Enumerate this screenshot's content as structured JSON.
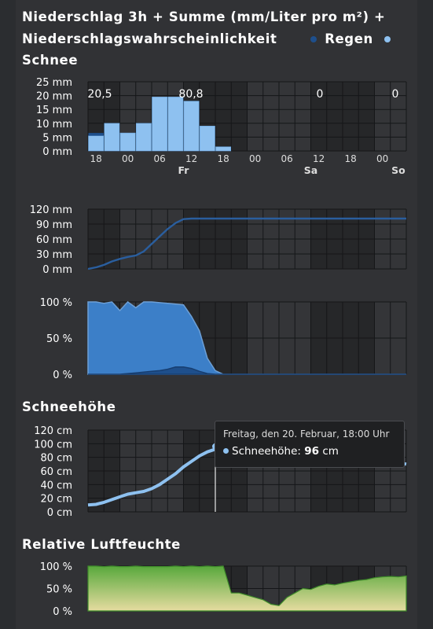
{
  "titles": {
    "precip_line1": "Niederschlag 3h + Summe (mm/Liter pro m²) +",
    "precip_line2": "Niederschlagswahrscheinlichkeit",
    "legend_rain": "Regen",
    "legend_snow": "Schnee",
    "snow_depth": "Schneehöhe",
    "humidity": "Relative Luftfeuchte"
  },
  "colors": {
    "rain": "#1e4f8c",
    "snow": "#8ec1f0",
    "snow_prob": "#3c7fc8",
    "humidity_green": "#58a83c",
    "humidity_sand": "#e6dca0"
  },
  "x_axis": {
    "hour_ticks": [
      "18",
      "00",
      "06",
      "12",
      "18",
      "00",
      "06",
      "12",
      "18",
      "00"
    ],
    "day_labels": [
      "Fr",
      "Sa",
      "So"
    ]
  },
  "tooltip": {
    "header": "Freitag, den 20. Februar, 18:00 Uhr",
    "series": "Schneehöhe:",
    "value": "96",
    "unit": "cm"
  },
  "chart_data": [
    {
      "type": "bar",
      "title": "Niederschlag 3h",
      "yticks": [
        "0 mm",
        "5 mm",
        "10 mm",
        "15 mm",
        "20 mm",
        "25 mm"
      ],
      "ylim": [
        0,
        25
      ],
      "day_totals": [
        "20,5",
        "80,8",
        "0",
        "0"
      ],
      "x": [
        "Do 18",
        "Do 21",
        "Fr 00",
        "Fr 03",
        "Fr 06",
        "Fr 09",
        "Fr 12",
        "Fr 15",
        "Fr 18",
        "Fr 21",
        "Sa 00",
        "Sa 03",
        "Sa 06",
        "Sa 09",
        "Sa 12",
        "Sa 15",
        "Sa 18",
        "Sa 21",
        "So 00",
        "So 03"
      ],
      "series": [
        {
          "name": "Schnee",
          "values": [
            5.5,
            10,
            6.5,
            10,
            19.5,
            19.5,
            18,
            9,
            1.5,
            0,
            0,
            0,
            0,
            0,
            0,
            0,
            0,
            0,
            0,
            0
          ]
        },
        {
          "name": "Regen",
          "values": [
            1,
            0,
            0,
            0,
            0,
            0,
            0,
            0,
            0,
            0,
            0,
            0,
            0,
            0,
            0,
            0,
            0,
            0,
            0,
            0
          ]
        }
      ]
    },
    {
      "type": "line",
      "title": "Niederschlag Summe",
      "yticks": [
        "0 mm",
        "30 mm",
        "60 mm",
        "90 mm",
        "120 mm"
      ],
      "ylim": [
        0,
        120
      ],
      "series": [
        {
          "name": "Summe",
          "values": [
            0,
            3,
            8,
            15,
            20,
            24,
            27,
            35,
            50,
            65,
            80,
            92,
            100,
            101,
            101,
            101,
            101,
            101,
            101,
            101,
            101,
            101,
            101,
            101,
            101,
            101,
            101,
            101,
            101,
            101,
            101,
            101,
            101,
            101,
            101,
            101,
            101,
            101,
            101,
            101,
            101
          ]
        }
      ]
    },
    {
      "type": "area",
      "title": "Niederschlagswahrscheinlichkeit",
      "yticks": [
        "0 %",
        "50 %",
        "100 %"
      ],
      "ylim": [
        0,
        100
      ],
      "series": [
        {
          "name": "Schnee",
          "values": [
            100,
            100,
            98,
            100,
            88,
            100,
            92,
            100,
            100,
            99,
            98,
            97,
            96,
            80,
            60,
            22,
            5,
            0,
            0,
            0,
            0,
            0,
            0,
            0,
            0,
            0,
            0,
            0,
            0,
            0,
            0,
            0,
            0,
            0,
            0,
            0,
            0,
            0,
            0,
            0,
            0
          ]
        },
        {
          "name": "Regen",
          "values": [
            0,
            0,
            0,
            0,
            0,
            1,
            2,
            3,
            4,
            5,
            7,
            10,
            10,
            8,
            4,
            1,
            0,
            0,
            0,
            0,
            0,
            0,
            0,
            0,
            0,
            0,
            0,
            0,
            0,
            0,
            0,
            0,
            0,
            0,
            0,
            0,
            0,
            0,
            0,
            0,
            0
          ]
        }
      ]
    },
    {
      "type": "line",
      "title": "Schneehöhe",
      "yticks": [
        "0 cm",
        "20 cm",
        "40 cm",
        "60 cm",
        "80 cm",
        "100 cm",
        "120 cm"
      ],
      "ylim": [
        0,
        120
      ],
      "series": [
        {
          "name": "Schneehöhe",
          "values": [
            10,
            11,
            14,
            18,
            22,
            26,
            28,
            30,
            34,
            40,
            48,
            56,
            66,
            74,
            82,
            88,
            92,
            96,
            96,
            94,
            93,
            92,
            91,
            90,
            89,
            88,
            87,
            86,
            85,
            84,
            83,
            82,
            81,
            80,
            79,
            78,
            77,
            76,
            74,
            72,
            70
          ]
        }
      ]
    },
    {
      "type": "area",
      "title": "Relative Luftfeuchte",
      "yticks": [
        "0 %",
        "50 %",
        "100 %"
      ],
      "ylim": [
        0,
        100
      ],
      "series": [
        {
          "name": "Relative Luftfeuchte",
          "values": [
            100,
            100,
            99,
            100,
            99,
            99,
            100,
            99,
            99,
            99,
            99,
            100,
            99,
            100,
            99,
            100,
            99,
            100,
            40,
            40,
            35,
            30,
            25,
            15,
            12,
            30,
            40,
            50,
            48,
            55,
            60,
            58,
            62,
            65,
            68,
            70,
            74,
            76,
            77,
            76,
            78
          ]
        }
      ]
    }
  ]
}
